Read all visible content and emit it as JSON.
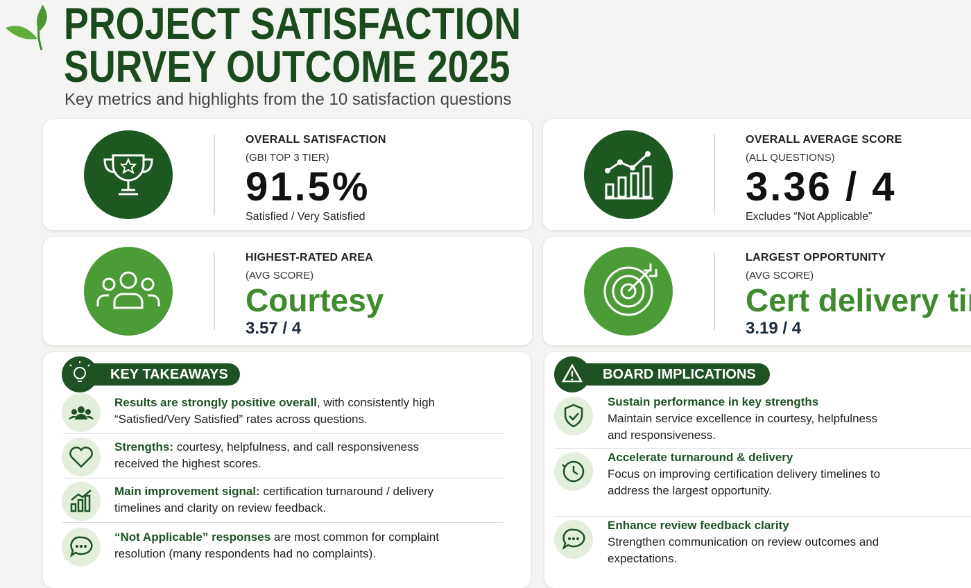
{
  "header": {
    "title_lines": [
      "PROJECT SATISFACTION",
      "SURVEY OUTCOME 2025"
    ],
    "subtitle": "Key metrics and highlights from the 10 satisfaction questions"
  },
  "metrics": [
    {
      "label": "OVERALL SATISFACTION",
      "sublabel": "(GBI TOP 3 TIER)",
      "value": "91.5%",
      "note": "Satisfied / Very Satisfied"
    },
    {
      "label": "OVERALL AVERAGE SCORE",
      "sublabel": "(ALL QUESTIONS)",
      "value": "3.36 / 4",
      "note": "Excludes “Not Applicable”"
    },
    {
      "label": "HIGHEST-RATED AREA",
      "sublabel": "(AVG SCORE)",
      "value": "Courtesy",
      "note": "3.57 / 4"
    },
    {
      "label": "LARGEST OPPORTUNITY",
      "sublabel": "(AVG SCORE)",
      "value": "Cert delivery time",
      "note": "3.19 / 4"
    }
  ],
  "takeaways": {
    "title": "KEY TAKEAWAYS",
    "items": [
      {
        "bold": "Results are strongly positive overall",
        "text": ", with consistently high “Satisfied/Very Satisfied” rates across questions."
      },
      {
        "bold": "Strengths:",
        "text": " courtesy, helpfulness, and call responsiveness received the highest scores."
      },
      {
        "bold": "Main improvement signal:",
        "text": " certification turnaround / delivery timelines and clarity on review feedback."
      },
      {
        "bold": "“Not Applicable” responses",
        "text": " are most common for complaint resolution (many respondents had no complaints)."
      }
    ]
  },
  "board": {
    "title": "BOARD IMPLICATIONS",
    "items": [
      {
        "title": "Sustain performance in key strengths",
        "text": "Maintain service excellence in courtesy, helpfulness and responsiveness."
      },
      {
        "title": "Accelerate turnaround & delivery",
        "text": "Focus on improving certification delivery timelines to address the largest opportunity."
      },
      {
        "title": "Enhance review feedback clarity",
        "text": "Strengthen communication on review outcomes and expectations."
      }
    ]
  }
}
